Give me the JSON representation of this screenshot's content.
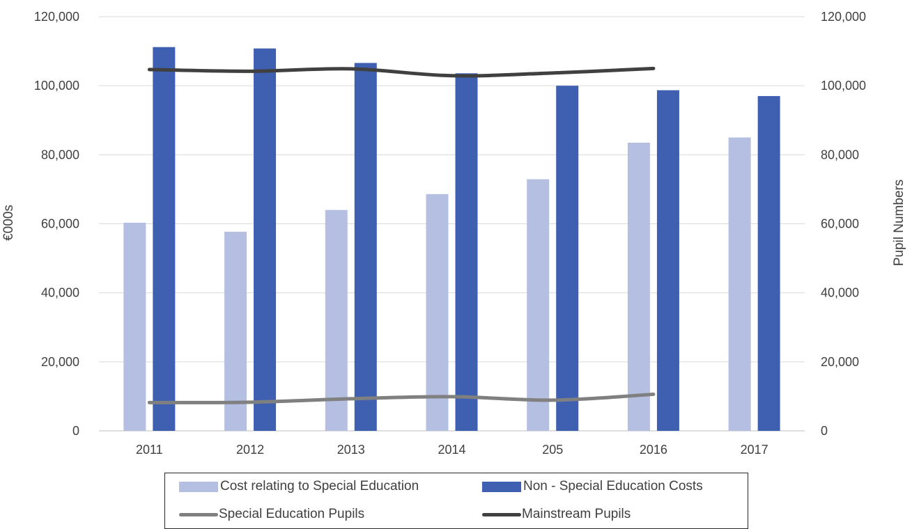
{
  "chart_data": {
    "type": "bar",
    "categories": [
      "2011",
      "2012",
      "2013",
      "2014",
      "205",
      "2016",
      "2017"
    ],
    "ylabel_left": "€000s",
    "ylabel_right": "Pupil Numbers",
    "ylim_left": [
      0,
      120000
    ],
    "ylim_right": [
      0,
      120000
    ],
    "yticks": [
      "0",
      "20,000",
      "40,000",
      "60,000",
      "80,000",
      "100,000",
      "120,000"
    ],
    "grid": "horizontal",
    "legend_position": "bottom",
    "series": [
      {
        "name": "Cost relating to Special Education",
        "type": "bar",
        "axis": "left",
        "color": "#b4bfe2",
        "values": [
          60300,
          57700,
          64000,
          68600,
          72900,
          83500,
          85000
        ]
      },
      {
        "name": "Non - Special Education Costs",
        "type": "bar",
        "axis": "left",
        "color": "#3f5fb0",
        "values": [
          111200,
          110800,
          106600,
          103600,
          100000,
          98700,
          97000
        ]
      },
      {
        "name": "Special Education Pupils",
        "type": "line",
        "axis": "right",
        "color": "#808080",
        "values": [
          8200,
          8300,
          9300,
          9900,
          8900,
          10600,
          null
        ]
      },
      {
        "name": "Mainstream Pupils",
        "type": "line",
        "axis": "right",
        "color": "#404040",
        "values": [
          104700,
          104200,
          104900,
          102900,
          103700,
          105000,
          null
        ]
      }
    ]
  }
}
